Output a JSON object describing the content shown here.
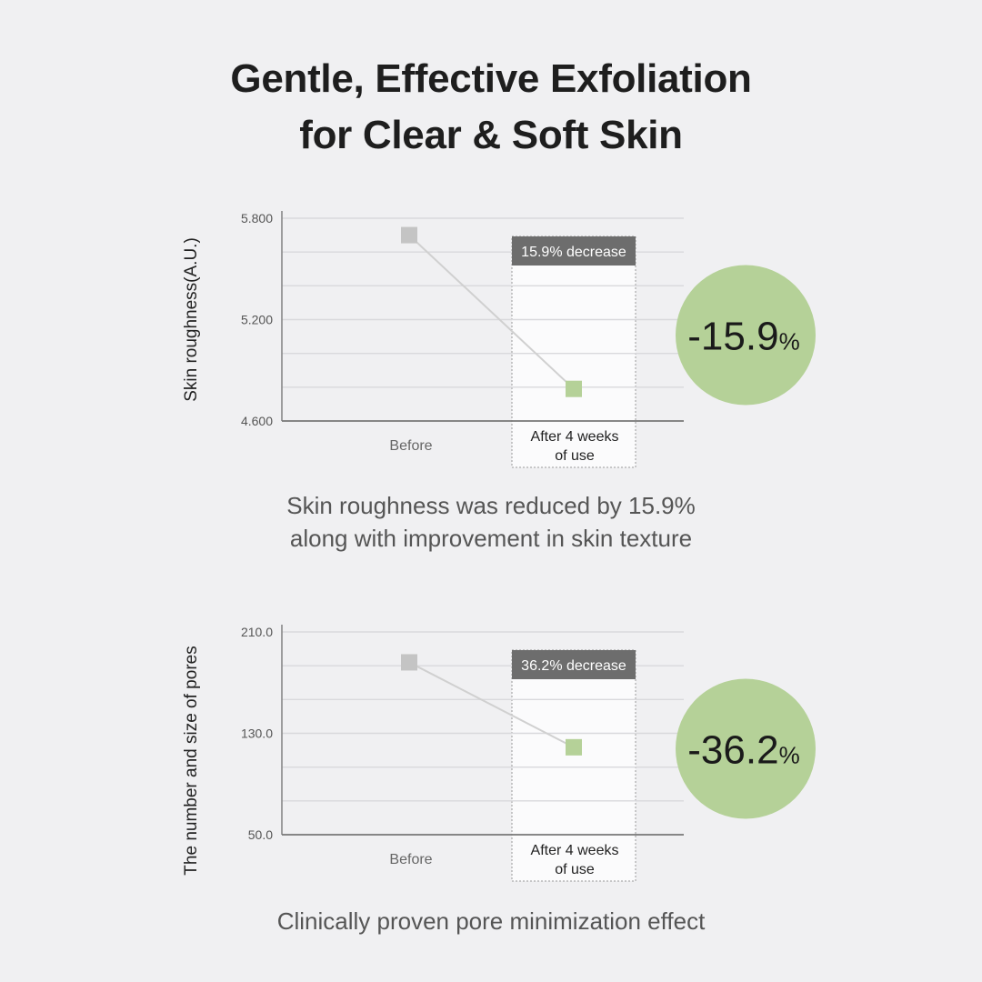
{
  "title": {
    "line1": "Gentle, Effective Exfoliation",
    "line2": "for Clear & Soft Skin"
  },
  "colors": {
    "accent_green": "#b5d198",
    "point_gray": "#c4c4c4",
    "point_green": "#b5d198",
    "badge_bg": "#6d6d6d"
  },
  "chart_data": [
    {
      "type": "line",
      "ylabel": "Skin roughness(A.U.)",
      "categories": [
        "Before",
        "After 4 weeks of use"
      ],
      "category_lines": [
        [
          "Before"
        ],
        [
          "After 4 weeks",
          "of use"
        ]
      ],
      "values": [
        5.7,
        4.79
      ],
      "ylim": [
        4.6,
        5.8
      ],
      "yticks": [
        "5.800",
        "5.200",
        "4.600"
      ],
      "badge": "15.9% decrease",
      "callout_value": "-15.9",
      "callout_unit": "%",
      "caption": [
        "Skin roughness was reduced by 15.9%",
        "along with improvement in skin texture"
      ]
    },
    {
      "type": "line",
      "ylabel": "The number and size of pores",
      "categories": [
        "Before",
        "After 4 weeks of use"
      ],
      "category_lines": [
        [
          "Before"
        ],
        [
          "After 4 weeks",
          "of use"
        ]
      ],
      "values": [
        186,
        119
      ],
      "ylim": [
        50,
        210
      ],
      "yticks": [
        "210.0",
        "130.0",
        "50.0"
      ],
      "badge": "36.2% decrease",
      "callout_value": "-36.2",
      "callout_unit": "%",
      "caption": [
        "Clinically proven pore minimization effect"
      ]
    }
  ]
}
